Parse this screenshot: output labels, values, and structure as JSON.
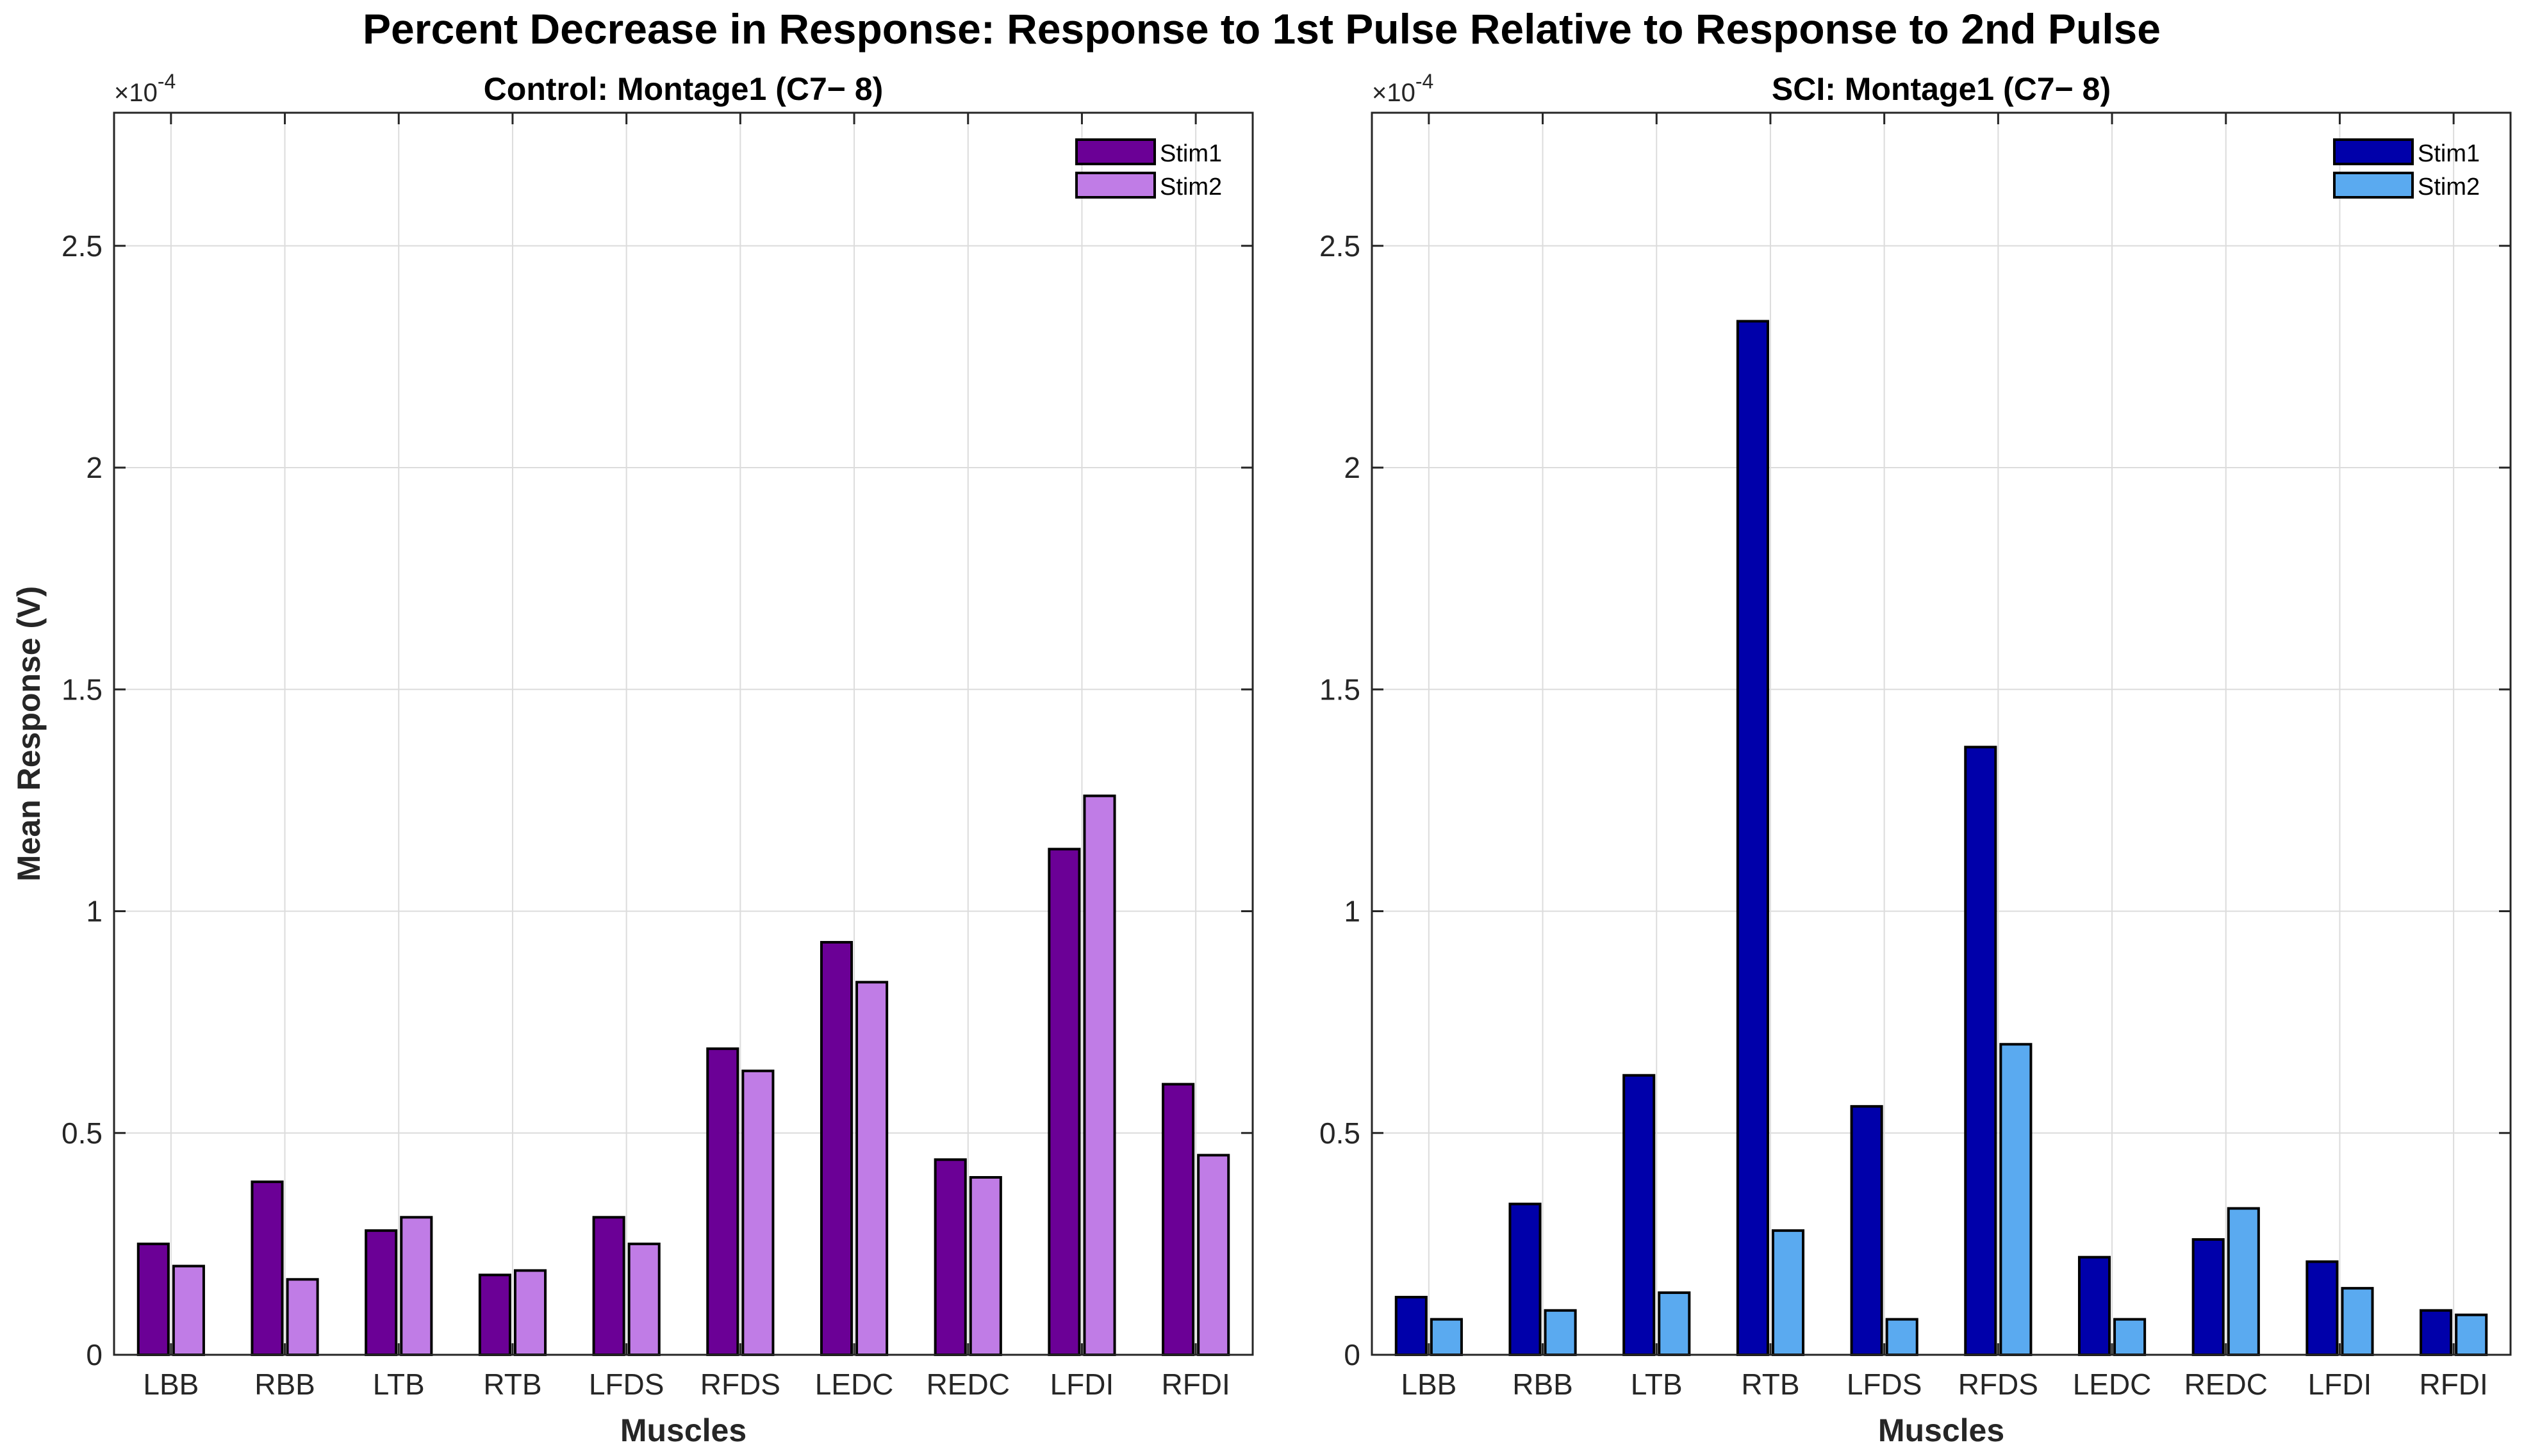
{
  "figure": {
    "title": "Percent Decrease in Response: Response to 1st Pulse Relative to Response to 2nd Pulse"
  },
  "chart_data": [
    {
      "type": "bar",
      "title": "Control: Montage1 (C7− 8)",
      "xlabel": "Muscles",
      "ylabel": "Mean Response (V)",
      "exponent_multiplier": "×",
      "exponent_base": "10",
      "exponent_power": "-4",
      "ylim": [
        0,
        2.8
      ],
      "yticks": [
        0,
        0.5,
        1,
        1.5,
        2,
        2.5
      ],
      "ytick_labels": [
        "0",
        "0.5",
        "1",
        "1.5",
        "2",
        "2.5"
      ],
      "grid": true,
      "legend_position": "top-right",
      "categories": [
        "LBB",
        "RBB",
        "LTB",
        "RTB",
        "LFDS",
        "RFDS",
        "LEDC",
        "REDC",
        "LFDI",
        "RFDI"
      ],
      "series": [
        {
          "name": "Stim1",
          "color": "#6b0096",
          "values": [
            0.25,
            0.39,
            0.28,
            0.18,
            0.31,
            0.69,
            0.93,
            0.44,
            1.14,
            0.61
          ]
        },
        {
          "name": "Stim2",
          "color": "#c07ce6",
          "values": [
            0.2,
            0.17,
            0.31,
            0.19,
            0.25,
            0.64,
            0.84,
            0.4,
            1.26,
            0.45
          ]
        }
      ]
    },
    {
      "type": "bar",
      "title": "SCI: Montage1 (C7− 8)",
      "xlabel": "Muscles",
      "ylabel": "",
      "exponent_multiplier": "×",
      "exponent_base": "10",
      "exponent_power": "-4",
      "ylim": [
        0,
        2.8
      ],
      "yticks": [
        0,
        0.5,
        1,
        1.5,
        2,
        2.5
      ],
      "ytick_labels": [
        "0",
        "0.5",
        "1",
        "1.5",
        "2",
        "2.5"
      ],
      "grid": true,
      "legend_position": "top-right",
      "categories": [
        "LBB",
        "RBB",
        "LTB",
        "RTB",
        "LFDS",
        "RFDS",
        "LEDC",
        "REDC",
        "LFDI",
        "RFDI"
      ],
      "series": [
        {
          "name": "Stim1",
          "color": "#0000aa",
          "values": [
            0.13,
            0.34,
            0.63,
            2.33,
            0.56,
            1.37,
            0.22,
            0.26,
            0.21,
            0.1
          ]
        },
        {
          "name": "Stim2",
          "color": "#5aaaf0",
          "values": [
            0.08,
            0.1,
            0.14,
            0.28,
            0.08,
            0.7,
            0.08,
            0.33,
            0.15,
            0.09
          ]
        }
      ]
    }
  ]
}
